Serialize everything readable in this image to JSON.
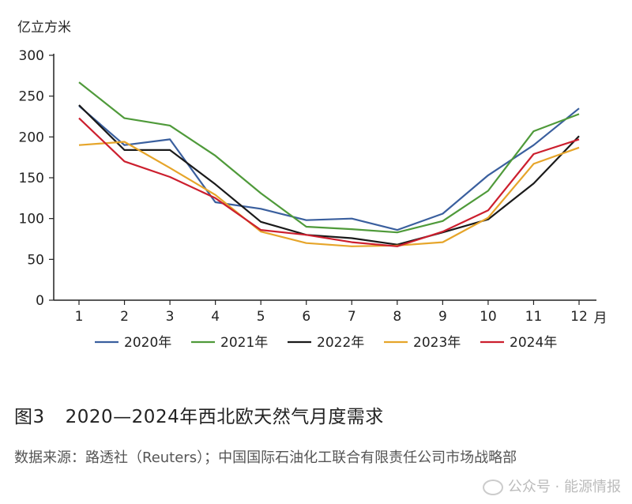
{
  "chart_data": {
    "type": "line",
    "title": "",
    "ylabel": "亿立方米",
    "xlabel": "月",
    "ylim": [
      0,
      300
    ],
    "yticks": [
      0,
      50,
      100,
      150,
      200,
      250,
      300
    ],
    "x": [
      1,
      2,
      3,
      4,
      5,
      6,
      7,
      8,
      9,
      10,
      11,
      12
    ],
    "xtick_labels": [
      "1",
      "2",
      "3",
      "4",
      "5",
      "6",
      "7",
      "8",
      "9",
      "10",
      "11",
      "12"
    ],
    "grid": false,
    "legend_position": "bottom",
    "series": [
      {
        "name": "2020年",
        "color": "#3a5f9e",
        "values": [
          238,
          190,
          197,
          120,
          112,
          98,
          100,
          86,
          106,
          153,
          190,
          235
        ]
      },
      {
        "name": "2021年",
        "color": "#4f9a3a",
        "values": [
          267,
          223,
          214,
          177,
          131,
          90,
          87,
          83,
          97,
          134,
          207,
          228
        ]
      },
      {
        "name": "2022年",
        "color": "#1a1a1a",
        "values": [
          239,
          184,
          184,
          142,
          96,
          80,
          76,
          68,
          83,
          99,
          143,
          201
        ]
      },
      {
        "name": "2023年",
        "color": "#e6a52a",
        "values": [
          190,
          194,
          162,
          129,
          84,
          70,
          66,
          67,
          71,
          101,
          167,
          187
        ]
      },
      {
        "name": "2024年",
        "color": "#cc1f2e",
        "values": [
          223,
          170,
          151,
          125,
          86,
          80,
          71,
          66,
          84,
          110,
          179,
          197
        ]
      }
    ]
  },
  "caption": {
    "figure_number": "图3",
    "text": "2020—2024年西北欧天然气月度需求"
  },
  "source": "数据来源：路透社（Reuters）；中国国际石油化工联合有限责任公司市场战略部",
  "watermark": "公众号 · 能源情报"
}
